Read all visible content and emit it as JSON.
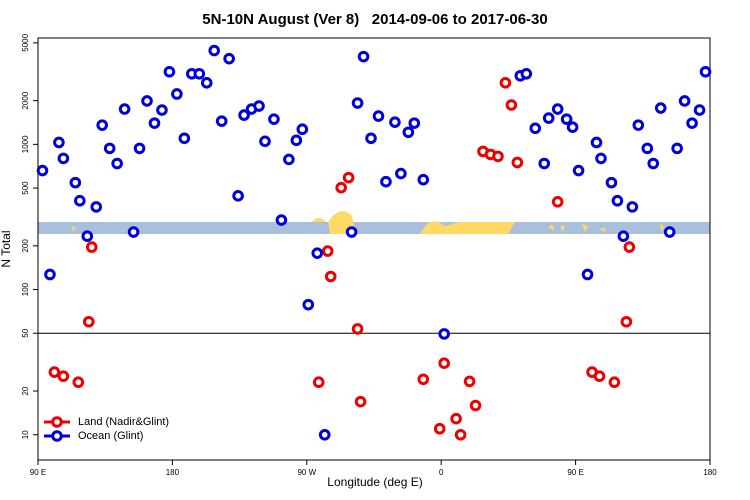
{
  "chart_data": {
    "type": "scatter",
    "title": "5N-10N August (Ver 8)   2014-09-06 to 2017-06-30",
    "x_label": "Longitude (deg E)",
    "y_label": "N Total",
    "log_y": true,
    "legend": "bottomleft",
    "reference_line": 50,
    "xlim": [
      90,
      540
    ],
    "ylim": [
      6.7,
      5400
    ],
    "xticks": [
      {
        "value": 90,
        "label": "90 E"
      },
      {
        "value": 180,
        "label": "180"
      },
      {
        "value": 270,
        "label": "90 W"
      },
      {
        "value": 360,
        "label": "0"
      },
      {
        "value": 450,
        "label": "90 E"
      },
      {
        "value": 540,
        "label": "180"
      }
    ],
    "yticks": [
      10,
      20,
      50,
      100,
      200,
      500,
      1000,
      2000,
      5000
    ],
    "series": [
      {
        "name": "Land (Nadir&Glint)",
        "color": "#ee0000",
        "x": [
          101,
          107,
          117,
          124,
          126,
          278,
          284,
          286,
          293,
          298,
          304,
          306,
          348,
          359,
          362,
          370,
          373,
          379,
          383,
          388,
          393,
          398,
          403,
          407,
          411,
          438,
          461,
          466,
          476,
          484,
          486
        ],
        "values": [
          27,
          25.3,
          23,
          60,
          196,
          23,
          184,
          123,
          503,
          590,
          53.6,
          16.9,
          24.1,
          11,
          31.1,
          12.9,
          10,
          23.3,
          15.9,
          894,
          853,
          826,
          2653,
          1866,
          750,
          402,
          27,
          25.3,
          23,
          60,
          196
        ]
      },
      {
        "name": "Ocean (Glint)",
        "color": "#0000dd",
        "x": [
          93,
          98,
          104,
          107,
          115,
          118,
          123,
          129,
          133,
          138,
          143,
          148,
          154,
          158,
          163,
          168,
          173,
          178,
          183,
          188,
          193,
          198,
          203,
          208,
          213,
          218,
          224,
          228,
          233,
          238,
          242,
          248,
          253,
          258,
          263,
          267,
          271,
          277,
          282,
          300,
          304,
          308,
          313,
          318,
          323,
          329,
          333,
          338,
          342,
          348,
          362,
          413,
          417,
          423,
          429,
          432,
          438,
          444,
          448,
          452,
          458,
          464,
          467,
          474,
          478,
          482,
          488,
          492,
          498,
          502,
          507,
          513,
          518,
          523,
          528,
          533,
          537
        ],
        "values": [
          660,
          127,
          1030,
          800,
          545,
          409,
          233,
          371,
          1356,
          938,
          738,
          1750,
          249,
          938,
          1990,
          1400,
          1722,
          3162,
          2223,
          1101,
          3062,
          3062,
          2653,
          4425,
          1445,
          3892,
          442,
          1590,
          1750,
          1836,
          1049,
          1492,
          301,
          787,
          1066,
          1271,
          78.7,
          178,
          10,
          249,
          1926,
          4019,
          1101,
          1565,
          553,
          1421,
          629,
          1211,
          1400,
          571,
          49.5,
          2967,
          3062,
          1291,
          738,
          1516,
          1750,
          1492,
          1313,
          660,
          127,
          1030,
          800,
          545,
          409,
          233,
          371,
          1356,
          938,
          738,
          1778,
          249,
          938,
          1990,
          1400,
          1722,
          3162
        ]
      }
    ]
  }
}
